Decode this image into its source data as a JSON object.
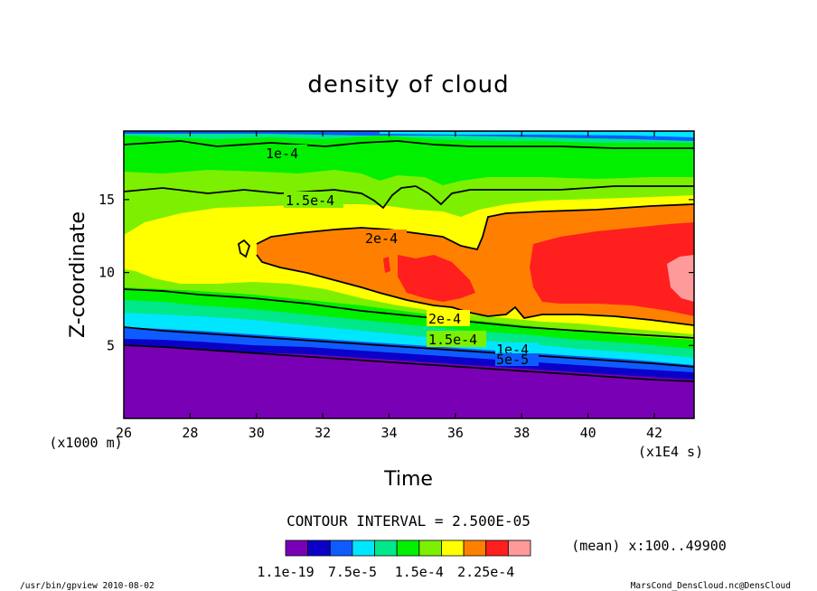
{
  "chart_data": {
    "type": "heatmap",
    "title": "density of cloud",
    "xlabel": "Time",
    "ylabel": "Z-coordinate",
    "x_unit_label": "(x1E4 s)",
    "y_unit_label": "(x1000 m)",
    "xlim": [
      26,
      43.2
    ],
    "ylim": [
      0,
      19.7
    ],
    "x_ticks": [
      "26",
      "28",
      "30",
      "32",
      "34",
      "36",
      "38",
      "40",
      "42"
    ],
    "y_ticks": [
      "5",
      "10",
      "15"
    ],
    "contour_interval_text": "CONTOUR INTERVAL = 2.500E-05",
    "mean_text": "(mean) x:100..49900",
    "colorbar": {
      "colors": [
        "#7a00b5",
        "#0c00c8",
        "#0e5cff",
        "#00e6ff",
        "#00e88a",
        "#00f000",
        "#7cf000",
        "#ffff00",
        "#ff8000",
        "#ff1f1f",
        "#ff9a9a"
      ],
      "labels": [
        "1.1e-19",
        "7.5e-5",
        "1.5e-4",
        "2.25e-4"
      ]
    },
    "contour_labels": [
      "1e-4",
      "1.5e-4",
      "2e-4",
      "2e-4",
      "1.5e-4",
      "1e-4",
      "5e-5"
    ],
    "footer_left": "/usr/bin/gpview  2010-08-02",
    "footer_right": "MarsCond_DensCloud.nc@DensCloud",
    "approx_contours": {
      "z_levels_by_band": [
        {
          "name": "level-0-to-1",
          "z_at_x26": 4.8,
          "z_at_x43": 3.2
        },
        {
          "name": "level-1-to-2",
          "z_at_x26": 5.1,
          "z_at_x43": 3.5
        },
        {
          "name": "level-2-to-3",
          "z_at_x26": 5.5,
          "z_at_x43": 3.9
        },
        {
          "name": "level-3-to-4",
          "z_at_x26": 5.9,
          "z_at_x43": 4.4
        },
        {
          "name": "level-4-to-5",
          "z_at_x26": 6.4,
          "z_at_x43": 4.9
        },
        {
          "name": "level-5-to-6",
          "z_at_x26": 7.1,
          "z_at_x43": 5.4
        },
        {
          "name": "level-6-to-7",
          "z_at_x26": 8.1,
          "z_at_x43": 5.9
        }
      ],
      "core_max_region_x": [
        38.5,
        43.2
      ],
      "core_max_region_z": [
        8.0,
        12.5
      ]
    }
  }
}
